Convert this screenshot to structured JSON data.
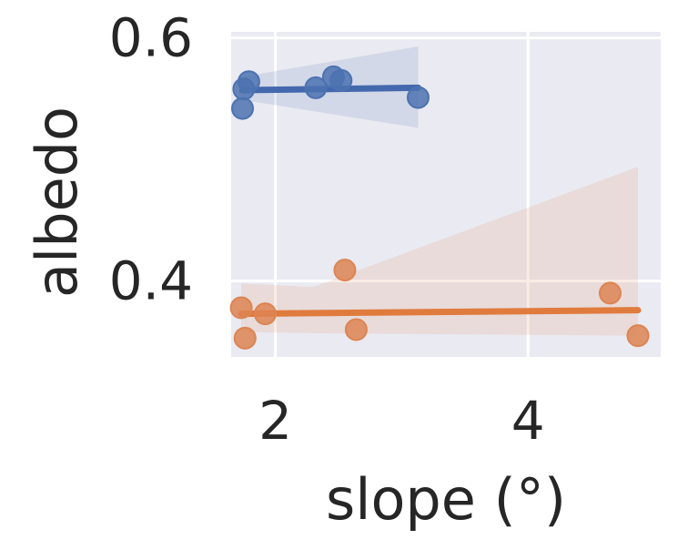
{
  "chart_data": {
    "type": "scatter",
    "title": "",
    "xlabel": "slope (°)",
    "ylabel": "albedo",
    "xlim": [
      1.65,
      5.05
    ],
    "ylim": [
      0.3375,
      0.605
    ],
    "xticks": [
      2,
      4
    ],
    "xtick_labels": [
      "2",
      "4"
    ],
    "yticks": [
      0.4,
      0.6
    ],
    "ytick_labels": [
      "0.4",
      "0.6"
    ],
    "grid": true,
    "legend": "none",
    "colors": {
      "background": "#eaeaf2",
      "grid": "#ffffff",
      "text": "#262626"
    },
    "series": [
      {
        "color": "#4c72b0",
        "line_color": "#4468ad",
        "points": [
          {
            "x": 1.75,
            "y": 0.558
          },
          {
            "x": 1.74,
            "y": 0.542
          },
          {
            "x": 1.79,
            "y": 0.564
          },
          {
            "x": 2.32,
            "y": 0.559
          },
          {
            "x": 2.46,
            "y": 0.568
          },
          {
            "x": 2.52,
            "y": 0.565
          },
          {
            "x": 3.13,
            "y": 0.551
          }
        ],
        "fit": {
          "x": [
            1.74,
            3.13
          ],
          "y": [
            0.557,
            0.559
          ]
        },
        "band": {
          "x": [
            1.74,
            3.13
          ],
          "lower": [
            0.549,
            0.526
          ],
          "upper": [
            0.568,
            0.593
          ]
        }
      },
      {
        "color": "#dd8452",
        "line_color": "#e07b3e",
        "points": [
          {
            "x": 1.73,
            "y": 0.378
          },
          {
            "x": 1.76,
            "y": 0.353
          },
          {
            "x": 1.92,
            "y": 0.373
          },
          {
            "x": 2.55,
            "y": 0.409
          },
          {
            "x": 2.64,
            "y": 0.36
          },
          {
            "x": 4.65,
            "y": 0.39
          },
          {
            "x": 4.87,
            "y": 0.355
          }
        ],
        "fit": {
          "x": [
            1.73,
            4.87
          ],
          "y": [
            0.373,
            0.376
          ]
        },
        "band": {
          "x": [
            1.73,
            2.3,
            4.87
          ],
          "lower": [
            0.358,
            0.357,
            0.355
          ],
          "upper": [
            0.398,
            0.395,
            0.494
          ]
        }
      }
    ]
  }
}
